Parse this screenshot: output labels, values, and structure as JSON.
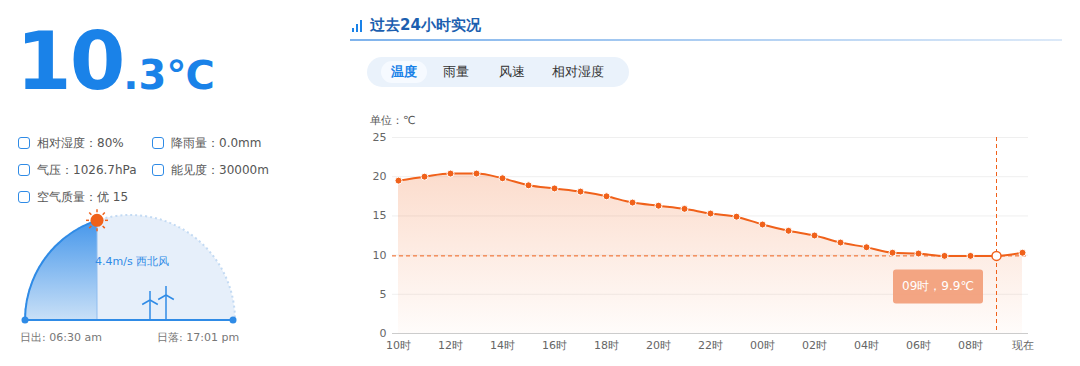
{
  "panel": {
    "temperature": "10",
    "temperature_decimal": ".3℃",
    "details": [
      "相对湿度：80%",
      "降雨量：0.0mm",
      "气压：1026.7hPa",
      "能见度：30000m",
      "空气质量：优 15"
    ],
    "wind": "4.4m/s 西北风",
    "sunrise": "日出: 06:30 am",
    "sunset": "日落: 17:01 pm"
  },
  "header": {
    "title": "过去24小时实况",
    "tabs": [
      "温度",
      "雨量",
      "风速",
      "相对湿度"
    ],
    "active_tab": "温度"
  },
  "chart_data": {
    "type": "line",
    "y_label": "单位：℃",
    "categories": [
      "10时",
      null,
      "12时",
      null,
      "14时",
      null,
      "16时",
      null,
      "18时",
      null,
      "20时",
      null,
      "22时",
      null,
      "00时",
      null,
      "02时",
      null,
      "04时",
      null,
      "06时",
      null,
      "08时",
      null,
      "现在"
    ],
    "values": [
      19.5,
      20.0,
      20.4,
      20.4,
      19.8,
      18.9,
      18.5,
      18.1,
      17.5,
      16.7,
      16.3,
      15.9,
      15.3,
      14.9,
      13.9,
      13.1,
      12.5,
      11.6,
      11.0,
      10.3,
      10.2,
      9.9,
      9.9,
      9.9,
      10.3
    ],
    "color": "#f0611a",
    "ylim": [
      0,
      25
    ],
    "yticks": [
      0,
      5,
      10,
      15,
      20,
      25
    ],
    "grid": true,
    "marker": "circle",
    "annotations": [
      {
        "text": "09时，9.9℃",
        "x": 23,
        "y": 9.9
      }
    ]
  }
}
